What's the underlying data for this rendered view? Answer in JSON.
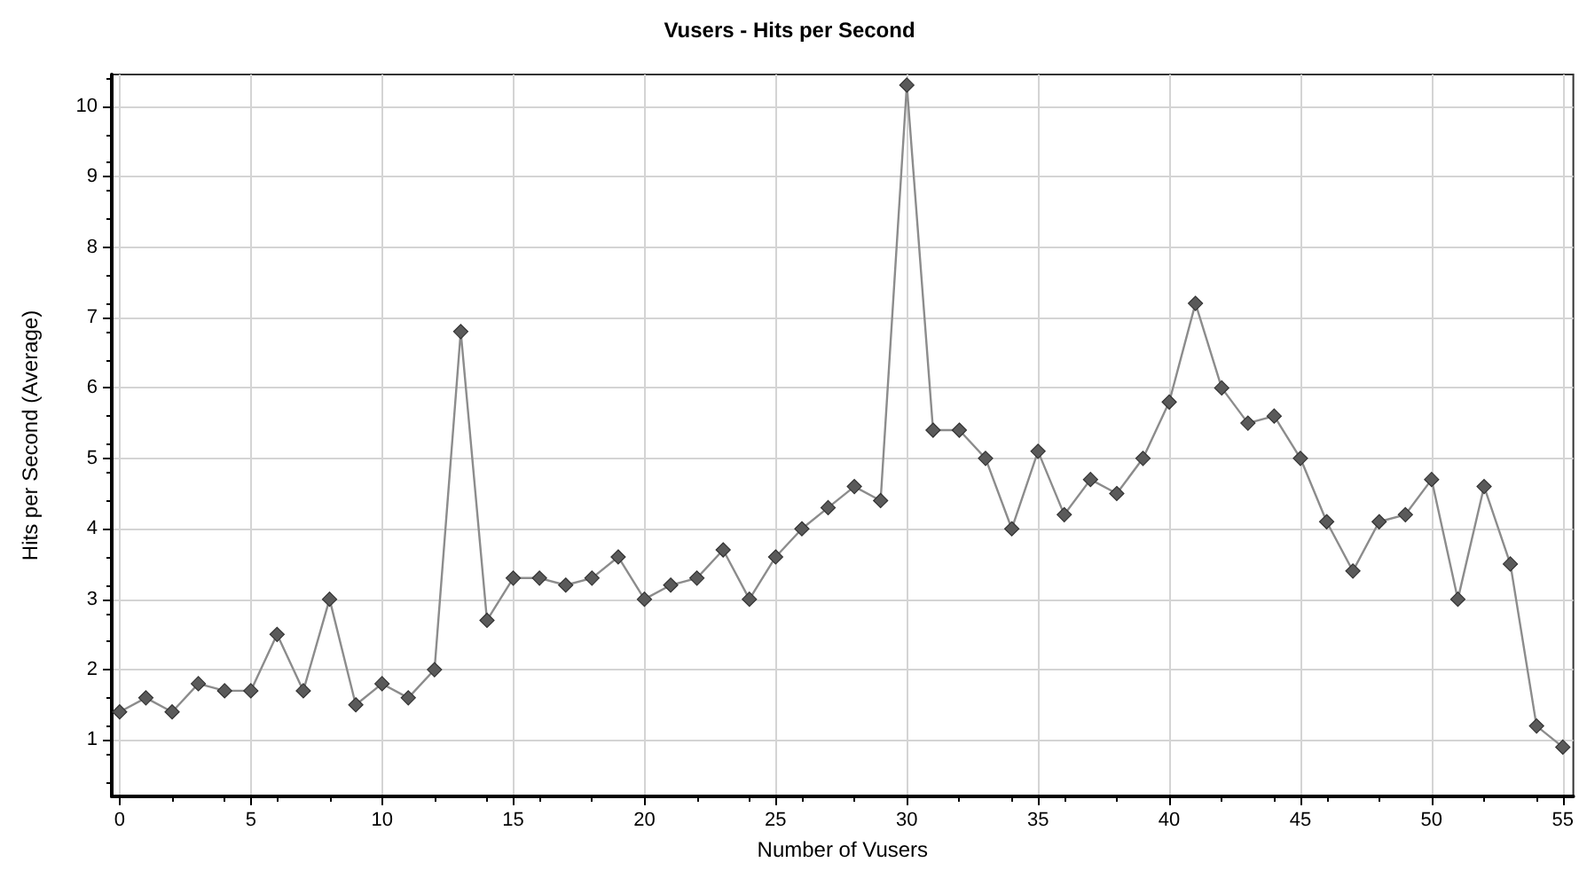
{
  "chart_data": {
    "type": "line",
    "title": "Vusers - Hits per Second",
    "xlabel": "Number of Vusers",
    "ylabel": "Hits per Second (Average)",
    "x": [
      0,
      1,
      2,
      3,
      4,
      5,
      6,
      7,
      8,
      9,
      10,
      11,
      12,
      13,
      14,
      15,
      16,
      17,
      18,
      19,
      20,
      21,
      22,
      23,
      24,
      25,
      26,
      27,
      28,
      29,
      30,
      31,
      32,
      33,
      34,
      35,
      36,
      37,
      38,
      39,
      40,
      41,
      42,
      43,
      44,
      45,
      46,
      47,
      48,
      49,
      50,
      51,
      52,
      53,
      54,
      55
    ],
    "series": [
      {
        "color": "#5a5a5a",
        "values": [
          1.4,
          1.6,
          1.4,
          1.8,
          1.7,
          1.7,
          2.5,
          1.7,
          3.0,
          1.5,
          1.8,
          1.6,
          2.0,
          6.8,
          2.7,
          3.3,
          3.3,
          3.2,
          3.3,
          3.6,
          3.0,
          3.2,
          3.3,
          3.7,
          3.0,
          3.6,
          4.0,
          4.3,
          4.6,
          4.4,
          10.3,
          5.4,
          5.4,
          5.0,
          4.0,
          5.1,
          4.2,
          4.7,
          4.5,
          5.0,
          5.8,
          7.2,
          6.0,
          5.5,
          5.6,
          5.0,
          4.1,
          3.4,
          4.1,
          4.2,
          4.7,
          3.0,
          4.6,
          3.5,
          1.2,
          0.9
        ]
      }
    ],
    "xlim": [
      -0.3,
      55.4
    ],
    "xticks": [
      0,
      5,
      10,
      15,
      20,
      25,
      30,
      35,
      40,
      45,
      50,
      55
    ],
    "ylim": [
      0.2,
      10.45
    ],
    "yticks": [
      1,
      2,
      3,
      4,
      5,
      6,
      7,
      8,
      9,
      10
    ],
    "grid": true,
    "marker": "diamond",
    "line_style": "solid"
  }
}
